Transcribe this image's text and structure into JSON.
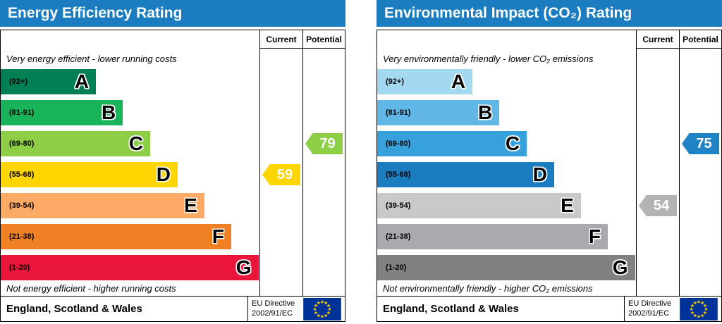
{
  "colors": {
    "title_bar": "#1b7cc0",
    "border": "#000000",
    "eu_flag_blue": "#003399",
    "eu_flag_stars": "#ffcc00"
  },
  "panels": [
    {
      "title": "Energy Efficiency Rating",
      "title_bg": "#1b7cc0",
      "columns": {
        "current": "Current",
        "potential": "Potential"
      },
      "top_note": "Very energy efficient - lower running costs",
      "bottom_note": "Not energy efficient - higher running costs",
      "bands": [
        {
          "range": "(92+)",
          "letter": "A",
          "color": "#008054",
          "width_pct": 36.8
        },
        {
          "range": "(81-91)",
          "letter": "B",
          "color": "#19b459",
          "width_pct": 47.2
        },
        {
          "range": "(69-80)",
          "letter": "C",
          "color": "#8dce46",
          "width_pct": 57.8
        },
        {
          "range": "(55-68)",
          "letter": "D",
          "color": "#ffd500",
          "width_pct": 68.4
        },
        {
          "range": "(39-54)",
          "letter": "E",
          "color": "#fcaa65",
          "width_pct": 78.7
        },
        {
          "range": "(21-38)",
          "letter": "F",
          "color": "#ef8023",
          "width_pct": 89.1
        },
        {
          "range": "(1-20)",
          "letter": "G",
          "color": "#e9153b",
          "width_pct": 99.6
        }
      ],
      "current": {
        "value": 59,
        "band_index": 3,
        "color": "#ffd500"
      },
      "potential": {
        "value": 79,
        "band_index": 2,
        "color": "#8dce46"
      },
      "footer_region": "England, Scotland & Wales",
      "directive_line1": "EU Directive",
      "directive_line2": "2002/91/EC"
    },
    {
      "title": "Environmental Impact (CO₂) Rating",
      "title_bg": "#1b7cc0",
      "columns": {
        "current": "Current",
        "potential": "Potential"
      },
      "top_note": "Very environmentally friendly - lower CO₂ emissions",
      "bottom_note": "Not environmentally friendly - higher CO₂ emissions",
      "bands": [
        {
          "range": "(92+)",
          "letter": "A",
          "color": "#a3d9f0",
          "width_pct": 36.8
        },
        {
          "range": "(81-91)",
          "letter": "B",
          "color": "#60b7e6",
          "width_pct": 47.2
        },
        {
          "range": "(69-80)",
          "letter": "C",
          "color": "#37a1db",
          "width_pct": 57.8
        },
        {
          "range": "(55-68)",
          "letter": "D",
          "color": "#1b7cc0",
          "width_pct": 68.4
        },
        {
          "range": "(39-54)",
          "letter": "E",
          "color": "#c8c9cb",
          "width_pct": 78.7
        },
        {
          "range": "(21-38)",
          "letter": "F",
          "color": "#a8aaad",
          "width_pct": 89.1
        },
        {
          "range": "(1-20)",
          "letter": "G",
          "color": "#7f8183",
          "width_pct": 99.6
        }
      ],
      "current": {
        "value": 54,
        "band_index": 4,
        "color": "#b1b3b5"
      },
      "potential": {
        "value": 75,
        "band_index": 2,
        "color": "#2083c6"
      },
      "footer_region": "England, Scotland & Wales",
      "directive_line1": "EU Directive",
      "directive_line2": "2002/91/EC"
    }
  ],
  "chart_data": [
    {
      "type": "bar",
      "orientation": "horizontal",
      "title": "Energy Efficiency Rating",
      "categories": [
        "A (92+)",
        "B (81-91)",
        "C (69-80)",
        "D (55-68)",
        "E (39-54)",
        "F (21-38)",
        "G (1-20)"
      ],
      "band_bar_lengths_pct": [
        36.8,
        47.2,
        57.8,
        68.4,
        78.7,
        89.1,
        99.6
      ],
      "value_range": [
        1,
        100
      ],
      "series": [
        {
          "name": "Current",
          "value": 59,
          "band": "D"
        },
        {
          "name": "Potential",
          "value": 79,
          "band": "C"
        }
      ],
      "annotations": [
        "Very energy efficient - lower running costs",
        "Not energy efficient - higher running costs",
        "England, Scotland & Wales",
        "EU Directive 2002/91/EC"
      ]
    },
    {
      "type": "bar",
      "orientation": "horizontal",
      "title": "Environmental Impact (CO₂) Rating",
      "categories": [
        "A (92+)",
        "B (81-91)",
        "C (69-80)",
        "D (55-68)",
        "E (39-54)",
        "F (21-38)",
        "G (1-20)"
      ],
      "band_bar_lengths_pct": [
        36.8,
        47.2,
        57.8,
        68.4,
        78.7,
        89.1,
        99.6
      ],
      "value_range": [
        1,
        100
      ],
      "series": [
        {
          "name": "Current",
          "value": 54,
          "band": "E"
        },
        {
          "name": "Potential",
          "value": 75,
          "band": "C"
        }
      ],
      "annotations": [
        "Very environmentally friendly - lower CO₂ emissions",
        "Not environmentally friendly - higher CO₂ emissions",
        "England, Scotland & Wales",
        "EU Directive 2002/91/EC"
      ]
    }
  ]
}
